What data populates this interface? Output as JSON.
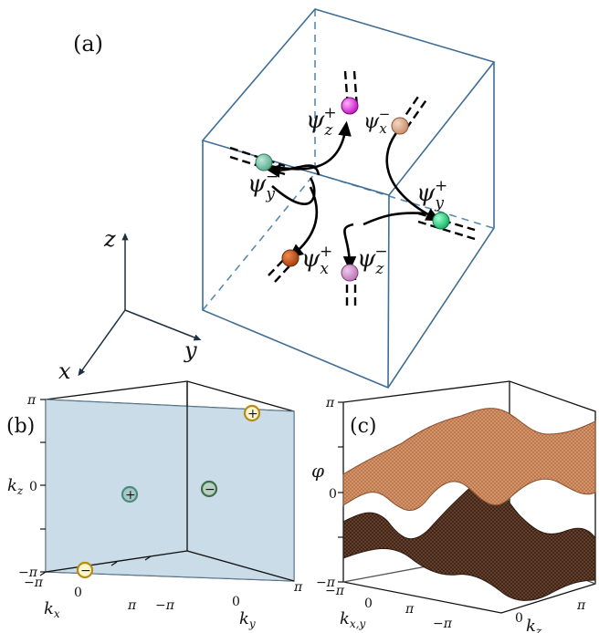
{
  "panels": {
    "a": {
      "label": "(a)"
    },
    "b": {
      "label": "(b)"
    },
    "c": {
      "label": "(c)"
    }
  },
  "axes_3d": {
    "z": "z",
    "y": "y",
    "x": "x"
  },
  "nodes": [
    {
      "name": "psi-z-plus",
      "sym": "ψ",
      "sub": "z",
      "sup": "+",
      "color": "#d81ad0"
    },
    {
      "name": "psi-x-minus",
      "sym": "ψ",
      "sub": "x",
      "sup": "−",
      "color": "#d7a07e"
    },
    {
      "name": "psi-y-minus",
      "sym": "ψ",
      "sub": "y",
      "sup": "−",
      "color": "#6cc0a0"
    },
    {
      "name": "psi-y-plus",
      "sym": "ψ",
      "sub": "y",
      "sup": "+",
      "color": "#1bd07a"
    },
    {
      "name": "psi-x-plus",
      "sym": "ψ",
      "sub": "x",
      "sup": "+",
      "color": "#c44a10"
    },
    {
      "name": "psi-z-minus",
      "sym": "ψ",
      "sub": "z",
      "sup": "−",
      "color": "#cc88c8"
    }
  ],
  "panel_b": {
    "kz_label": "k",
    "kz_sub": "z",
    "kx_label": "k",
    "kx_sub": "x",
    "ky_label": "k",
    "ky_sub": "y",
    "ticks": {
      "pi": "π",
      "minus_pi": "−π",
      "zero": "0"
    },
    "plane_color": "#c4d8e6",
    "charges": [
      {
        "name": "charge-plus-top",
        "sign": "+",
        "style": "gold"
      },
      {
        "name": "charge-plus-center",
        "sign": "+",
        "style": "teal"
      },
      {
        "name": "charge-minus-center",
        "sign": "−",
        "style": "green"
      },
      {
        "name": "charge-minus-bottom",
        "sign": "−",
        "style": "gold"
      }
    ]
  },
  "panel_c": {
    "phi_label": "φ",
    "kxy_label": "k",
    "kxy_sub": "x,y",
    "kz_label": "k",
    "kz_sub": "z",
    "ticks": {
      "pi": "π",
      "minus_pi": "−π",
      "zero": "0"
    },
    "surface_top_color": "#d9956a",
    "surface_bottom_color": "#6b4530"
  }
}
